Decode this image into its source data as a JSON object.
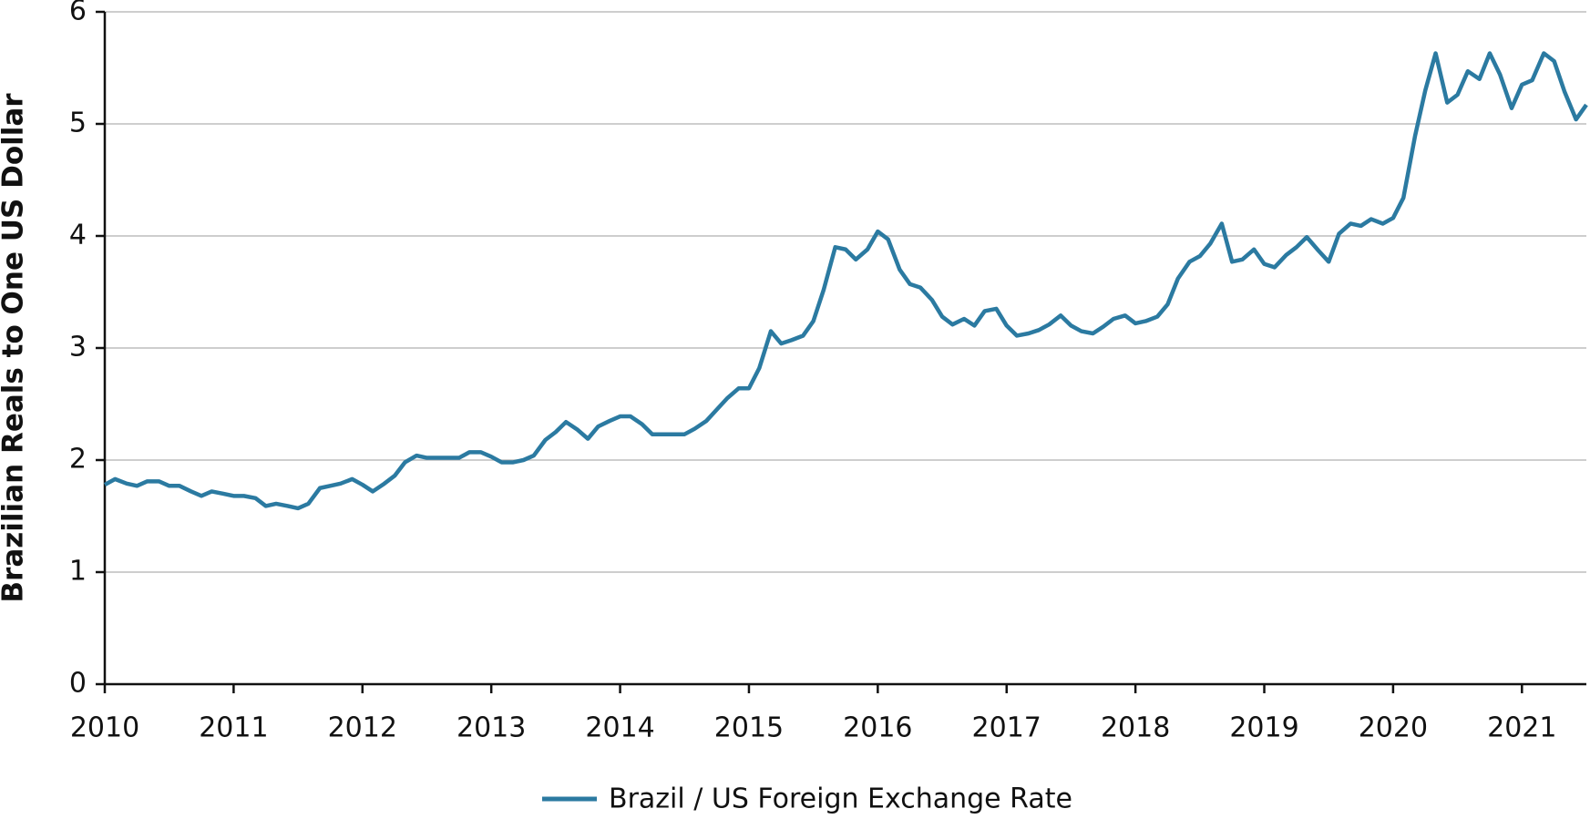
{
  "chart_data": {
    "type": "line",
    "y_label": "Brazilian Reals to One US Dollar",
    "x": [
      2010,
      2010.08,
      2010.17,
      2010.25,
      2010.33,
      2010.42,
      2010.5,
      2010.58,
      2010.67,
      2010.75,
      2010.83,
      2010.92,
      2011,
      2011.08,
      2011.17,
      2011.25,
      2011.33,
      2011.42,
      2011.5,
      2011.58,
      2011.67,
      2011.75,
      2011.83,
      2011.92,
      2012,
      2012.08,
      2012.17,
      2012.25,
      2012.33,
      2012.42,
      2012.5,
      2012.58,
      2012.67,
      2012.75,
      2012.83,
      2012.92,
      2013,
      2013.08,
      2013.17,
      2013.25,
      2013.33,
      2013.42,
      2013.5,
      2013.58,
      2013.67,
      2013.75,
      2013.83,
      2013.92,
      2014,
      2014.08,
      2014.17,
      2014.25,
      2014.33,
      2014.42,
      2014.5,
      2014.58,
      2014.67,
      2014.75,
      2014.83,
      2014.92,
      2015,
      2015.08,
      2015.17,
      2015.25,
      2015.33,
      2015.42,
      2015.5,
      2015.58,
      2015.67,
      2015.75,
      2015.83,
      2015.92,
      2016,
      2016.08,
      2016.17,
      2016.25,
      2016.33,
      2016.42,
      2016.5,
      2016.58,
      2016.67,
      2016.75,
      2016.83,
      2016.92,
      2017,
      2017.08,
      2017.17,
      2017.25,
      2017.33,
      2017.42,
      2017.5,
      2017.58,
      2017.67,
      2017.75,
      2017.83,
      2017.92,
      2018,
      2018.08,
      2018.17,
      2018.25,
      2018.33,
      2018.42,
      2018.5,
      2018.58,
      2018.67,
      2018.75,
      2018.83,
      2018.92,
      2019,
      2019.08,
      2019.17,
      2019.25,
      2019.33,
      2019.42,
      2019.5,
      2019.58,
      2019.67,
      2019.75,
      2019.83,
      2019.92,
      2020,
      2020.08,
      2020.17,
      2020.25,
      2020.33,
      2020.42,
      2020.5,
      2020.58,
      2020.67,
      2020.75,
      2020.83,
      2020.92,
      2021,
      2021.08,
      2021.17,
      2021.25,
      2021.33,
      2021.42,
      2021.5
    ],
    "series": [
      {
        "name": "Brazil / US Foreign Exchange Rate",
        "color": "#2b7aa1",
        "values": [
          1.78,
          1.83,
          1.79,
          1.77,
          1.81,
          1.81,
          1.77,
          1.77,
          1.72,
          1.68,
          1.72,
          1.7,
          1.68,
          1.68,
          1.66,
          1.59,
          1.61,
          1.59,
          1.57,
          1.61,
          1.75,
          1.77,
          1.79,
          1.83,
          1.78,
          1.72,
          1.79,
          1.86,
          1.98,
          2.04,
          2.02,
          2.02,
          2.02,
          2.02,
          2.07,
          2.07,
          2.03,
          1.98,
          1.98,
          2.0,
          2.04,
          2.18,
          2.25,
          2.34,
          2.27,
          2.19,
          2.3,
          2.35,
          2.39,
          2.39,
          2.32,
          2.23,
          2.23,
          2.23,
          2.23,
          2.28,
          2.35,
          2.45,
          2.55,
          2.64,
          2.64,
          2.82,
          3.15,
          3.04,
          3.07,
          3.11,
          3.24,
          3.52,
          3.9,
          3.88,
          3.79,
          3.88,
          4.04,
          3.97,
          3.7,
          3.57,
          3.54,
          3.43,
          3.28,
          3.21,
          3.26,
          3.2,
          3.33,
          3.35,
          3.2,
          3.11,
          3.13,
          3.16,
          3.21,
          3.29,
          3.2,
          3.15,
          3.13,
          3.19,
          3.26,
          3.29,
          3.22,
          3.24,
          3.28,
          3.39,
          3.62,
          3.77,
          3.82,
          3.93,
          4.11,
          3.77,
          3.79,
          3.88,
          3.75,
          3.72,
          3.83,
          3.9,
          3.99,
          3.87,
          3.77,
          4.02,
          4.11,
          4.09,
          4.15,
          4.11,
          4.16,
          4.34,
          4.89,
          5.3,
          5.63,
          5.19,
          5.26,
          5.47,
          5.4,
          5.63,
          5.44,
          5.14,
          5.35,
          5.39,
          5.63,
          5.56,
          5.29,
          5.04,
          5.17
        ]
      }
    ],
    "xlim": [
      2010,
      2021.5
    ],
    "xticks": [
      2010,
      2011,
      2012,
      2013,
      2014,
      2015,
      2016,
      2017,
      2018,
      2019,
      2020,
      2021
    ],
    "ylim": [
      0,
      6
    ],
    "yticks": [
      0,
      1,
      2,
      3,
      4,
      5,
      6
    ],
    "grid": true,
    "legend": "bottom"
  }
}
